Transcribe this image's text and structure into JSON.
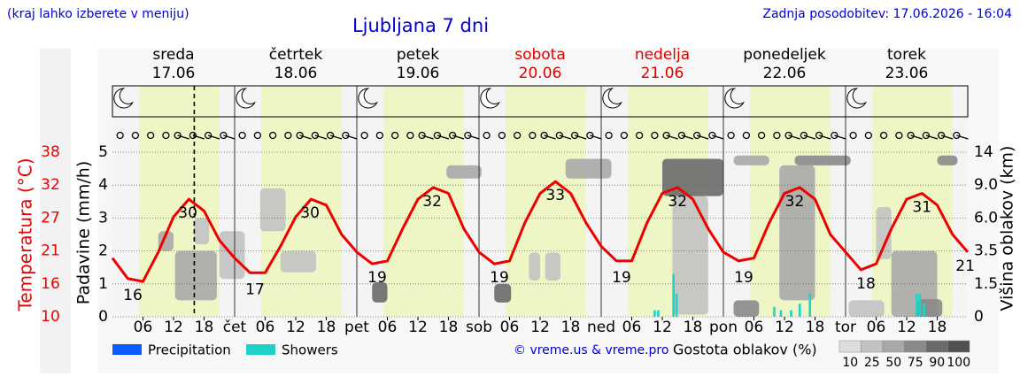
{
  "chart_data": {
    "type": "meteogram",
    "title": "Ljubljana 7 dni",
    "annotations": [
      "(kraj lahko izberete v meniju)",
      "Zadnja posodobitev: 17.06.2026 - 16:04",
      "© vreme.us & vreme.pro"
    ],
    "xlim": [
      0,
      168
    ],
    "now": 16.07,
    "daylight": [
      5.2,
      21
    ],
    "days": [
      {
        "name": "sreda",
        "date": "17.06",
        "color": "#000000"
      },
      {
        "name": "četrtek",
        "date": "18.06",
        "color": "#000000"
      },
      {
        "name": "petek",
        "date": "19.06",
        "color": "#000000"
      },
      {
        "name": "sobota",
        "date": "20.06",
        "color": "#e00000"
      },
      {
        "name": "nedelja",
        "date": "21.06",
        "color": "#e00000"
      },
      {
        "name": "ponedeljek",
        "date": "22.06",
        "color": "#000000"
      },
      {
        "name": "torek",
        "date": "23.06",
        "color": "#000000"
      }
    ],
    "xticks": [
      {
        "value": 6,
        "label": "06"
      },
      {
        "value": 12,
        "label": "12"
      },
      {
        "value": 18,
        "label": "18"
      },
      {
        "value": 24,
        "label": "čet"
      },
      {
        "value": 30,
        "label": "06"
      },
      {
        "value": 36,
        "label": "12"
      },
      {
        "value": 42,
        "label": "18"
      },
      {
        "value": 48,
        "label": "pet"
      },
      {
        "value": 54,
        "label": "06"
      },
      {
        "value": 60,
        "label": "12"
      },
      {
        "value": 66,
        "label": "18"
      },
      {
        "value": 72,
        "label": "sob"
      },
      {
        "value": 78,
        "label": "06"
      },
      {
        "value": 84,
        "label": "12"
      },
      {
        "value": 90,
        "label": "18"
      },
      {
        "value": 96,
        "label": "ned"
      },
      {
        "value": 102,
        "label": "06"
      },
      {
        "value": 108,
        "label": "12"
      },
      {
        "value": 114,
        "label": "18"
      },
      {
        "value": 120,
        "label": "pon"
      },
      {
        "value": 126,
        "label": "06"
      },
      {
        "value": 132,
        "label": "12"
      },
      {
        "value": 138,
        "label": "18"
      },
      {
        "value": 144,
        "label": "tor"
      },
      {
        "value": 150,
        "label": "06"
      },
      {
        "value": 156,
        "label": "12"
      },
      {
        "value": 162,
        "label": "18"
      }
    ],
    "precipitation_axis": {
      "label": "Padavine (mm/h)",
      "ylim": [
        0,
        5
      ],
      "yticks": [
        0,
        1,
        2,
        3,
        4,
        5
      ]
    },
    "temperature": {
      "axis_label": "Temperatura (°C)",
      "color": "#ee0000",
      "ylim": [
        10,
        38
      ],
      "yticks": [
        10,
        {
          "value": 15.6,
          "label": "16"
        },
        {
          "value": 21.2,
          "label": "21"
        },
        {
          "value": 26.8,
          "label": "27"
        },
        {
          "value": 32.4,
          "label": "32"
        },
        38
      ],
      "x": [
        0,
        3,
        6,
        9,
        12,
        15,
        18,
        21,
        24,
        27,
        30,
        33,
        36,
        39,
        42,
        45,
        48,
        51,
        54,
        57,
        60,
        63,
        66,
        69,
        72,
        75,
        78,
        81,
        84,
        87,
        90,
        93,
        96,
        99,
        102,
        105,
        108,
        111,
        114,
        117,
        120,
        123,
        126,
        129,
        132,
        135,
        138,
        141,
        144,
        147,
        150,
        153,
        156,
        159,
        162,
        165,
        168
      ],
      "values": [
        20,
        16.5,
        16,
        21,
        27,
        30,
        28,
        23,
        20,
        17.5,
        17.5,
        22,
        27,
        30,
        29,
        24,
        21,
        19,
        19.5,
        25,
        30,
        32,
        31,
        25,
        21,
        19,
        19.5,
        26,
        31,
        33,
        31,
        26,
        22,
        19.5,
        19.5,
        26,
        31,
        32,
        30,
        25,
        21,
        19.5,
        20,
        26,
        31,
        32,
        30,
        24,
        21,
        18,
        19,
        25,
        30,
        31,
        29,
        24,
        21
      ],
      "labels": {
        "x": [
          4,
          14.8,
          28,
          38.8,
          52,
          62.8,
          76,
          87,
          100,
          111,
          124,
          134,
          148,
          159,
          167.5
        ],
        "values": [
          16,
          30,
          17,
          30,
          19,
          32,
          19,
          33,
          19,
          32,
          19,
          32,
          18,
          31,
          21
        ]
      }
    },
    "series": [
      {
        "name": "Precipitation",
        "color": "#0a5cff",
        "x": [],
        "values": []
      },
      {
        "name": "Showers",
        "color": "#1ed2c8",
        "x": [
          106.5,
          107.2,
          110.2,
          110.8,
          130,
          131.3,
          133.3,
          135,
          137,
          158,
          158.6,
          159.4
        ],
        "values": [
          0.2,
          0.2,
          1.3,
          0.7,
          0.3,
          0.2,
          0.2,
          0.4,
          0.7,
          0.7,
          0.7,
          0.4
        ]
      }
    ],
    "cloud_axis": {
      "label": "Višina oblakov (km)",
      "yticks": [
        0,
        1.5,
        3.5,
        {
          "value": 6,
          "label": "6.0"
        },
        {
          "value": 9,
          "label": "9.0"
        },
        14
      ]
    },
    "clouds": {
      "legend_title": "Gostota oblakov (%)",
      "levels": [
        10,
        25,
        50,
        75,
        90,
        100
      ],
      "colors": [
        "#dddddd",
        "#c2c2c2",
        "#a8a8a8",
        "#8a8a8a",
        "#6a6a6a",
        "#505050"
      ],
      "blocks": [
        {
          "x": [
            9,
            12
          ],
          "height": [
            3.5,
            5
          ],
          "density": 50
        },
        {
          "x": [
            12.3,
            20.5
          ],
          "height": [
            0.75,
            3.5
          ],
          "density": 50
        },
        {
          "x": [
            16,
            19
          ],
          "height": [
            4,
            6
          ],
          "density": 25
        },
        {
          "x": [
            21,
            26
          ],
          "height": [
            1.8,
            5
          ],
          "density": 25
        },
        {
          "x": [
            29,
            34
          ],
          "height": [
            5,
            8.7
          ],
          "density": 25
        },
        {
          "x": [
            33,
            40
          ],
          "height": [
            2.2,
            3.5
          ],
          "density": 25
        },
        {
          "x": [
            51,
            54
          ],
          "height": [
            0.65,
            1.6
          ],
          "density": 90
        },
        {
          "x": [
            65.6,
            72.5
          ],
          "height": [
            10,
            12
          ],
          "density": 50
        },
        {
          "x": [
            75,
            78.3
          ],
          "height": [
            0.65,
            1.5
          ],
          "density": 90
        },
        {
          "x": [
            81.8,
            84
          ],
          "height": [
            1.7,
            3.4
          ],
          "density": 25
        },
        {
          "x": [
            85,
            88
          ],
          "height": [
            1.7,
            3.4
          ],
          "density": 25
        },
        {
          "x": [
            89,
            98
          ],
          "height": [
            10,
            13
          ],
          "density": 50
        },
        {
          "x": [
            110,
            117
          ],
          "height": [
            0.1,
            8
          ],
          "density": 25
        },
        {
          "x": [
            108,
            120
          ],
          "height": [
            8,
            13
          ],
          "density": 90
        },
        {
          "x": [
            122,
            129
          ],
          "height": [
            12,
            13.5
          ],
          "density": 50
        },
        {
          "x": [
            122,
            127
          ],
          "height": [
            0,
            0.75
          ],
          "density": 75
        },
        {
          "x": [
            131,
            138
          ],
          "height": [
            0.75,
            12
          ],
          "density": 50
        },
        {
          "x": [
            134,
            145
          ],
          "height": [
            12,
            13.5
          ],
          "density": 75
        },
        {
          "x": [
            144.6,
            151.6
          ],
          "height": [
            0,
            0.75
          ],
          "density": 25
        },
        {
          "x": [
            150,
            153
          ],
          "height": [
            3,
            7
          ],
          "density": 25
        },
        {
          "x": [
            153,
            162
          ],
          "height": [
            0,
            3.5
          ],
          "density": 50
        },
        {
          "x": [
            158,
            163
          ],
          "height": [
            0,
            0.8
          ],
          "density": 75
        },
        {
          "x": [
            162,
            166
          ],
          "height": [
            12,
            13.5
          ],
          "density": 75
        }
      ]
    }
  }
}
